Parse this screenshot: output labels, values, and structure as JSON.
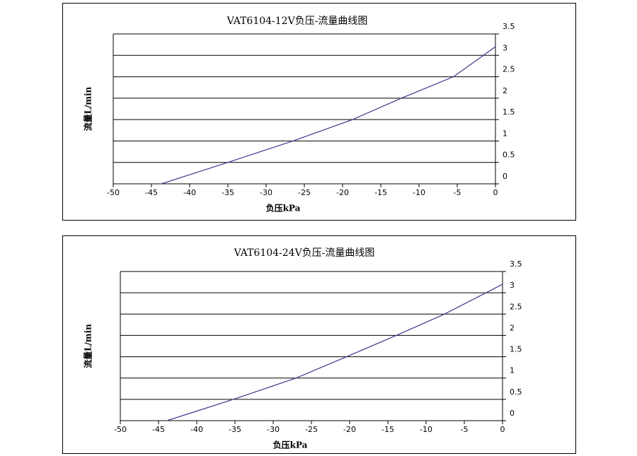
{
  "chart_data": [
    {
      "type": "line",
      "title": "VAT6104-12V负压-流量曲线图",
      "x_label": "负压kPa",
      "y_label": "流量L/min",
      "x": [
        -43.7,
        -35,
        -26.5,
        -18.7,
        -12.3,
        -5.5,
        0
      ],
      "values": [
        0,
        0.5,
        1.0,
        1.5,
        2.0,
        2.5,
        3.2
      ],
      "color": "#3a3a8c",
      "xlim": [
        -50,
        0
      ],
      "xticks": [
        -50,
        -45,
        -40,
        -35,
        -30,
        -25,
        -20,
        -15,
        -10,
        -5,
        0
      ],
      "ylim": [
        0,
        3.5
      ],
      "yticks": [
        0,
        0.5,
        1,
        1.5,
        2,
        2.5,
        3,
        3.5
      ],
      "grid": true
    },
    {
      "type": "line",
      "title": "VAT6104-24V负压-流量曲线图",
      "x_label": "负压kPa",
      "y_label": "流量L/min",
      "x": [
        -43.9,
        -35.2,
        -27,
        -20.4,
        -13.9,
        -7.6,
        0
      ],
      "values": [
        0,
        0.5,
        1.0,
        1.5,
        2.0,
        2.5,
        3.2
      ],
      "color": "#3a3a8c",
      "xlim": [
        -50,
        0
      ],
      "xticks": [
        -50,
        -45,
        -40,
        -35,
        -30,
        -25,
        -20,
        -15,
        -10,
        -5,
        0
      ],
      "ylim": [
        0,
        3.5
      ],
      "yticks": [
        0,
        0.5,
        1,
        1.5,
        2,
        2.5,
        3,
        3.5
      ],
      "grid": true
    }
  ]
}
